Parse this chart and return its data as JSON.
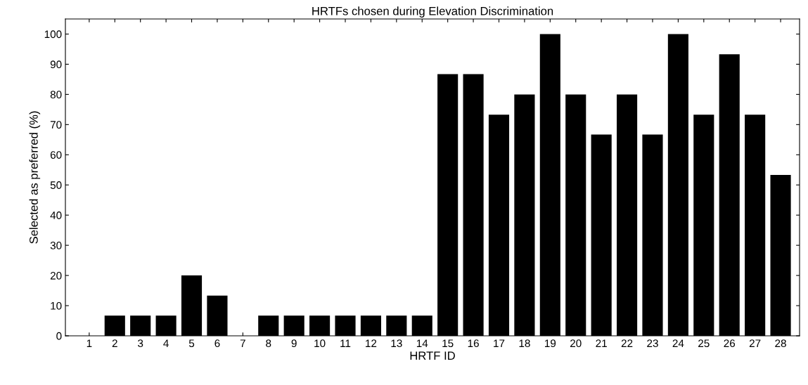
{
  "chart_data": {
    "type": "bar",
    "title": "HRTFs chosen during Elevation Discrimination",
    "xlabel": "HRTF ID",
    "ylabel": "Selected as preferred (%)",
    "categories": [
      "1",
      "2",
      "3",
      "4",
      "5",
      "6",
      "7",
      "8",
      "9",
      "10",
      "11",
      "12",
      "13",
      "14",
      "15",
      "16",
      "17",
      "18",
      "19",
      "20",
      "21",
      "22",
      "23",
      "24",
      "25",
      "26",
      "27",
      "28"
    ],
    "values": [
      0,
      6.7,
      6.7,
      6.7,
      20,
      13.3,
      0,
      6.7,
      6.7,
      6.7,
      6.7,
      6.7,
      6.7,
      6.7,
      86.7,
      86.7,
      73.3,
      80,
      100,
      80,
      66.7,
      80,
      66.7,
      100,
      73.3,
      93.3,
      73.3,
      53.3
    ],
    "color": "#000000",
    "ylim": [
      0,
      105
    ],
    "yticks": [
      0,
      10,
      20,
      30,
      40,
      50,
      60,
      70,
      80,
      90,
      100
    ],
    "grid": false,
    "legend": false
  }
}
